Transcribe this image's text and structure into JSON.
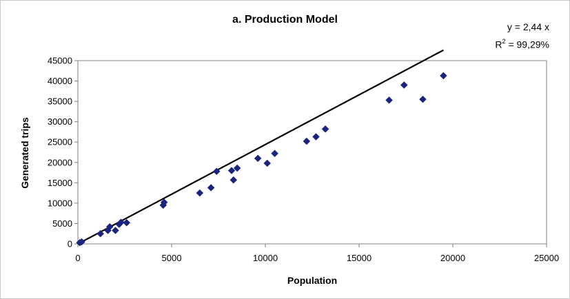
{
  "chart_data": {
    "type": "scatter",
    "title": "a. Production Model",
    "xlabel": "Population",
    "ylabel": "Generated trips",
    "xlim": [
      0,
      25000
    ],
    "ylim": [
      0,
      45000
    ],
    "x_ticks": [
      "0",
      "5000",
      "10000",
      "15000",
      "20000",
      "25000"
    ],
    "y_ticks": [
      "0",
      "5000",
      "10000",
      "15000",
      "20000",
      "25000",
      "30000",
      "35000",
      "40000",
      "45000"
    ],
    "equation": "y = 2,44 x",
    "r2_prefix": "R",
    "r2_sup": "2",
    "r2_value": " = 99,29%",
    "trendline": {
      "slope": 2.44,
      "x_range": [
        0,
        19500
      ]
    },
    "grid": false,
    "marker_color": "#1a237e",
    "line_color": "#000000",
    "points": [
      {
        "x": 100,
        "y": 300
      },
      {
        "x": 200,
        "y": 500
      },
      {
        "x": 1200,
        "y": 2500
      },
      {
        "x": 1600,
        "y": 3300
      },
      {
        "x": 1700,
        "y": 4200
      },
      {
        "x": 2000,
        "y": 3300
      },
      {
        "x": 2200,
        "y": 4800
      },
      {
        "x": 2300,
        "y": 5300
      },
      {
        "x": 2600,
        "y": 5200
      },
      {
        "x": 4550,
        "y": 9500
      },
      {
        "x": 4600,
        "y": 10200
      },
      {
        "x": 6500,
        "y": 12500
      },
      {
        "x": 7100,
        "y": 13800
      },
      {
        "x": 7400,
        "y": 17800
      },
      {
        "x": 8200,
        "y": 18000
      },
      {
        "x": 8300,
        "y": 15700
      },
      {
        "x": 8500,
        "y": 18600
      },
      {
        "x": 9600,
        "y": 21000
      },
      {
        "x": 10100,
        "y": 19800
      },
      {
        "x": 10500,
        "y": 22200
      },
      {
        "x": 12200,
        "y": 25200
      },
      {
        "x": 12700,
        "y": 26300
      },
      {
        "x": 13200,
        "y": 28200
      },
      {
        "x": 16600,
        "y": 35300
      },
      {
        "x": 17400,
        "y": 39000
      },
      {
        "x": 18400,
        "y": 35500
      },
      {
        "x": 19500,
        "y": 41300
      }
    ]
  }
}
